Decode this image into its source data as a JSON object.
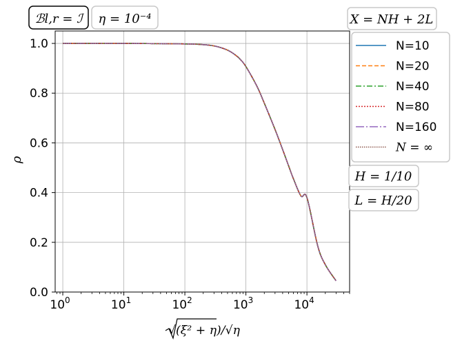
{
  "chart_data": {
    "type": "line",
    "xlabel": "√(ξ² + η)/√η",
    "ylabel": "ρ",
    "xscale": "log",
    "xlim": [
      0.75,
      50000
    ],
    "ylim": [
      0.0,
      1.05
    ],
    "grid": true,
    "x_ticks": [
      {
        "base": "10",
        "exp": "0"
      },
      {
        "base": "10",
        "exp": "1"
      },
      {
        "base": "10",
        "exp": "2"
      },
      {
        "base": "10",
        "exp": "3"
      },
      {
        "base": "10",
        "exp": "4"
      }
    ],
    "y_ticks": [
      "0.0",
      "0.2",
      "0.4",
      "0.6",
      "0.8",
      "1.0"
    ],
    "x": [
      1,
      10,
      100,
      200,
      300,
      400,
      500,
      600,
      700,
      800,
      1000,
      1500,
      2000,
      3000,
      4000,
      5000,
      6000,
      8000,
      10000,
      15000,
      20000,
      30000
    ],
    "series": [
      {
        "name": "N=10",
        "color": "#1f77b4",
        "dash": "",
        "values": [
          1.0,
          1.0,
          0.998,
          0.995,
          0.99,
          0.982,
          0.973,
          0.962,
          0.95,
          0.937,
          0.907,
          0.83,
          0.76,
          0.654,
          0.573,
          0.508,
          0.456,
          0.386,
          0.38,
          0.186,
          0.11,
          0.045
        ]
      },
      {
        "name": "N=20",
        "color": "#ff7f0e",
        "dash": "6,3",
        "values": [
          1.0,
          1.0,
          0.998,
          0.995,
          0.99,
          0.982,
          0.973,
          0.962,
          0.95,
          0.937,
          0.907,
          0.83,
          0.76,
          0.654,
          0.573,
          0.508,
          0.456,
          0.386,
          0.38,
          0.186,
          0.11,
          0.045
        ]
      },
      {
        "name": "N=40",
        "color": "#2ca02c",
        "dash": "8,3,2,3",
        "values": [
          1.0,
          1.0,
          0.998,
          0.995,
          0.99,
          0.982,
          0.973,
          0.962,
          0.95,
          0.937,
          0.907,
          0.83,
          0.76,
          0.654,
          0.573,
          0.508,
          0.456,
          0.386,
          0.38,
          0.186,
          0.11,
          0.045
        ]
      },
      {
        "name": "N=80",
        "color": "#d62728",
        "dash": "2,2",
        "values": [
          1.0,
          1.0,
          0.998,
          0.995,
          0.99,
          0.982,
          0.973,
          0.962,
          0.95,
          0.937,
          0.907,
          0.83,
          0.76,
          0.654,
          0.573,
          0.508,
          0.456,
          0.386,
          0.38,
          0.186,
          0.11,
          0.045
        ]
      },
      {
        "name": "N=160",
        "color": "#9467bd",
        "dash": "12,3,2,3",
        "values": [
          1.0,
          1.0,
          0.998,
          0.995,
          0.99,
          0.982,
          0.973,
          0.962,
          0.95,
          0.937,
          0.907,
          0.83,
          0.76,
          0.654,
          0.573,
          0.508,
          0.456,
          0.386,
          0.38,
          0.186,
          0.11,
          0.045
        ]
      },
      {
        "name": "N = ∞",
        "color": "#8c564b",
        "dash": "1.5,1.5",
        "values": [
          1.0,
          1.0,
          0.998,
          0.995,
          0.99,
          0.982,
          0.973,
          0.962,
          0.95,
          0.937,
          0.907,
          0.83,
          0.76,
          0.654,
          0.573,
          0.508,
          0.456,
          0.386,
          0.38,
          0.186,
          0.11,
          0.045
        ]
      }
    ],
    "legend_position": "right",
    "legend_title": "X = NH + 2L",
    "annotations": {
      "top_left_1": "ℬl,r = ℐ",
      "top_left_2": "η = 10⁻⁴",
      "right_1": "H = 1/10",
      "right_2": "L = H/20"
    }
  }
}
